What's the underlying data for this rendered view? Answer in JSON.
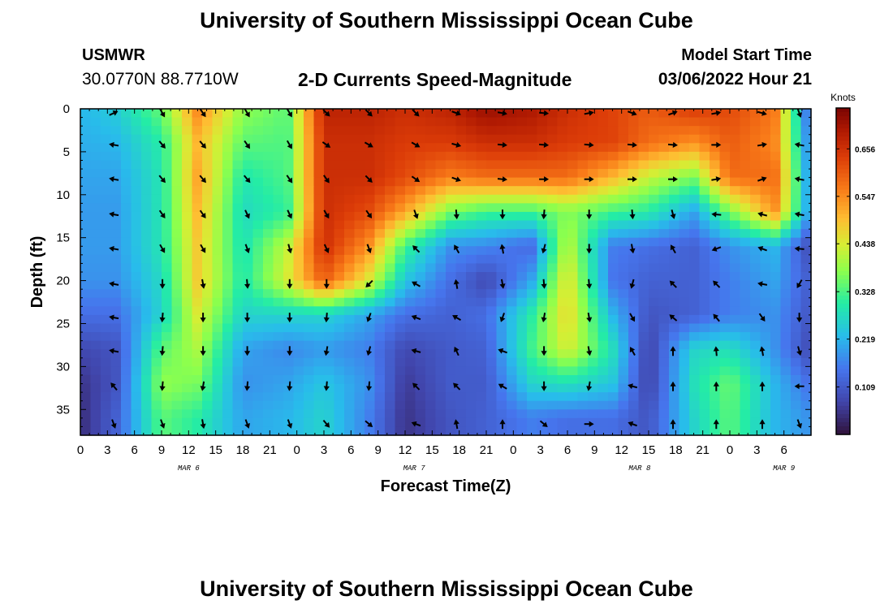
{
  "header": {
    "title": "University of Southern Mississippi Ocean Cube",
    "station": "USMWR",
    "coords": "30.0770N  88.7710W",
    "subtitle": "2-D Currents Speed-Magnitude",
    "model_label": "Model Start Time",
    "model_time": "03/06/2022 Hour 21"
  },
  "footer": {
    "title": "University of Southern Mississippi Ocean Cube"
  },
  "chart_data": {
    "type": "heatmap",
    "title": "2-D Currents Speed-Magnitude",
    "xlabel": "Forecast Time(Z)",
    "ylabel": "Depth (ft)",
    "x_range_hours": [
      0,
      81
    ],
    "x_tick_labels": [
      "0",
      "3",
      "6",
      "9",
      "12",
      "15",
      "18",
      "21",
      "0",
      "3",
      "6",
      "9",
      "12",
      "15",
      "18",
      "21",
      "0",
      "3",
      "6",
      "9",
      "12",
      "15",
      "18",
      "21",
      "0",
      "3",
      "6"
    ],
    "day_labels": [
      {
        "label": "MAR 6",
        "hour": 12
      },
      {
        "label": "MAR 7",
        "hour": 37
      },
      {
        "label": "MAR 8",
        "hour": 62
      },
      {
        "label": "MAR 9",
        "hour": 78
      }
    ],
    "ylim": [
      0,
      38
    ],
    "y_ticks": [
      0,
      5,
      10,
      15,
      20,
      25,
      30,
      35
    ],
    "colorbar": {
      "title": "Knots",
      "ticks": [
        "0.656",
        "0.547",
        "0.438",
        "0.328",
        "0.219",
        "0.109"
      ],
      "tick_values": [
        0.656,
        0.547,
        0.438,
        0.328,
        0.219,
        0.109
      ],
      "range": [
        0.0,
        0.75
      ]
    },
    "hours": [
      0,
      4,
      9,
      13,
      18,
      23,
      27,
      32,
      36,
      41,
      45,
      50,
      54,
      59,
      63,
      68,
      72,
      77,
      81
    ],
    "depths": [
      0,
      4,
      8,
      12,
      16,
      20,
      24,
      28,
      32,
      36
    ],
    "speed": [
      [
        0.22,
        0.25,
        0.35,
        0.55,
        0.38,
        0.34,
        0.68,
        0.68,
        0.66,
        0.68,
        0.72,
        0.7,
        0.66,
        0.63,
        0.6,
        0.64,
        0.62,
        0.57,
        0.1
      ],
      [
        0.21,
        0.22,
        0.3,
        0.5,
        0.34,
        0.33,
        0.66,
        0.66,
        0.64,
        0.64,
        0.66,
        0.66,
        0.64,
        0.63,
        0.58,
        0.54,
        0.6,
        0.55,
        0.14
      ],
      [
        0.2,
        0.2,
        0.29,
        0.52,
        0.29,
        0.33,
        0.66,
        0.66,
        0.62,
        0.56,
        0.58,
        0.58,
        0.58,
        0.5,
        0.42,
        0.36,
        0.58,
        0.58,
        0.16
      ],
      [
        0.19,
        0.19,
        0.29,
        0.5,
        0.27,
        0.31,
        0.66,
        0.62,
        0.52,
        0.36,
        0.32,
        0.32,
        0.37,
        0.32,
        0.3,
        0.2,
        0.36,
        0.54,
        0.17
      ],
      [
        0.19,
        0.19,
        0.29,
        0.48,
        0.28,
        0.42,
        0.66,
        0.54,
        0.32,
        0.18,
        0.17,
        0.13,
        0.42,
        0.16,
        0.14,
        0.12,
        0.18,
        0.22,
        0.08
      ],
      [
        0.18,
        0.18,
        0.27,
        0.48,
        0.29,
        0.44,
        0.6,
        0.44,
        0.24,
        0.14,
        0.08,
        0.2,
        0.46,
        0.15,
        0.12,
        0.12,
        0.16,
        0.2,
        0.11
      ],
      [
        0.14,
        0.14,
        0.26,
        0.44,
        0.26,
        0.26,
        0.26,
        0.2,
        0.14,
        0.12,
        0.14,
        0.3,
        0.47,
        0.22,
        0.1,
        0.12,
        0.16,
        0.18,
        0.1
      ],
      [
        0.08,
        0.1,
        0.34,
        0.4,
        0.2,
        0.17,
        0.19,
        0.16,
        0.08,
        0.11,
        0.12,
        0.32,
        0.44,
        0.28,
        0.07,
        0.26,
        0.28,
        0.18,
        0.08
      ],
      [
        0.05,
        0.1,
        0.38,
        0.36,
        0.18,
        0.2,
        0.24,
        0.18,
        0.06,
        0.11,
        0.11,
        0.26,
        0.28,
        0.24,
        0.07,
        0.28,
        0.35,
        0.22,
        0.14
      ],
      [
        0.04,
        0.12,
        0.34,
        0.3,
        0.2,
        0.22,
        0.26,
        0.16,
        0.05,
        0.1,
        0.12,
        0.16,
        0.14,
        0.14,
        0.1,
        0.26,
        0.34,
        0.22,
        0.18
      ]
    ],
    "vector_hours": [
      3.7,
      9.1,
      13.6,
      18.5,
      23.2,
      27.3,
      32.0,
      37.2,
      41.7,
      46.8,
      51.4,
      56.4,
      61.2,
      65.7,
      70.5,
      75.6,
      79.7
    ],
    "vector_depths": [
      0.5,
      4.2,
      8.2,
      12.3,
      16.3,
      20.4,
      24.3,
      28.2,
      32.3,
      36.7
    ],
    "vector_dir": [
      [
        -25,
        60,
        55,
        60,
        60,
        45,
        45,
        45,
        20,
        10,
        5,
        -10,
        20,
        -20,
        -10,
        15,
        70
      ],
      [
        -170,
        50,
        50,
        55,
        60,
        35,
        30,
        30,
        15,
        5,
        5,
        5,
        5,
        5,
        0,
        -10,
        -170
      ],
      [
        -170,
        50,
        50,
        50,
        55,
        55,
        45,
        35,
        20,
        5,
        0,
        0,
        0,
        0,
        -10,
        -20,
        -170
      ],
      [
        -170,
        55,
        55,
        65,
        65,
        60,
        55,
        70,
        85,
        90,
        95,
        90,
        85,
        75,
        -175,
        -165,
        -170
      ],
      [
        -170,
        60,
        60,
        70,
        75,
        65,
        70,
        -135,
        -120,
        -100,
        105,
        90,
        80,
        -120,
        160,
        -160,
        -175
      ],
      [
        -170,
        90,
        80,
        85,
        90,
        90,
        135,
        -150,
        -100,
        80,
        85,
        85,
        105,
        -135,
        -135,
        -170,
        120
      ],
      [
        -170,
        95,
        90,
        90,
        90,
        95,
        110,
        -160,
        -150,
        110,
        100,
        80,
        60,
        -140,
        -130,
        55,
        90
      ],
      [
        -170,
        95,
        90,
        90,
        90,
        100,
        105,
        -165,
        -115,
        -160,
        90,
        80,
        -120,
        -90,
        -95,
        -100,
        75
      ],
      [
        -130,
        95,
        100,
        95,
        95,
        95,
        95,
        -135,
        -135,
        -150,
        90,
        100,
        -165,
        -90,
        -90,
        -90,
        -180
      ],
      [
        70,
        70,
        80,
        70,
        70,
        50,
        40,
        -160,
        -100,
        -90,
        40,
        0,
        -160,
        -90,
        -90,
        -90,
        70
      ]
    ]
  }
}
